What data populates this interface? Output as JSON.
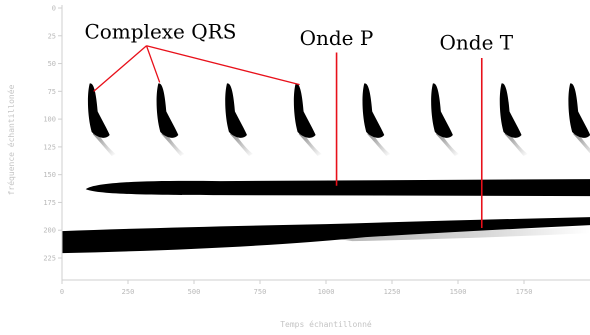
{
  "chart_data": {
    "type": "heatmap",
    "xlabel": "Temps échantillonné",
    "ylabel": "fréquence échantillonée",
    "xlim": [
      0,
      2000
    ],
    "ylim": [
      0,
      240
    ],
    "y_inverted": true,
    "x_ticks": [
      {
        "value": 0,
        "label": "0"
      },
      {
        "value": 250,
        "label": "250"
      },
      {
        "value": 500,
        "label": "500"
      },
      {
        "value": 750,
        "label": "750"
      },
      {
        "value": 1000,
        "label": "1000"
      },
      {
        "value": 1250,
        "label": "1250"
      },
      {
        "value": 1500,
        "label": "1500"
      },
      {
        "value": 1750,
        "label": "1750"
      }
    ],
    "y_ticks": [
      {
        "value": 0,
        "label": "0"
      },
      {
        "value": 25,
        "label": "25"
      },
      {
        "value": 50,
        "label": "50"
      },
      {
        "value": 75,
        "label": "75"
      },
      {
        "value": 100,
        "label": "100"
      },
      {
        "value": 125,
        "label": "125"
      },
      {
        "value": 150,
        "label": "150"
      },
      {
        "value": 175,
        "label": "175"
      },
      {
        "value": 200,
        "label": "200"
      },
      {
        "value": 225,
        "label": "225"
      }
    ],
    "colormap": "grayscale (white = low, black = high)",
    "qrs_complexes_time": [
      120,
      380,
      640,
      900,
      1160,
      1420,
      1680,
      1940
    ],
    "bands": [
      {
        "id": "band-upper",
        "from_time": 90,
        "to_time": 2000,
        "frequency": 163
      },
      {
        "id": "band-lower",
        "from_time": 0,
        "to_time": 2000,
        "frequency": 208
      }
    ],
    "annotations": [
      {
        "id": "qrs",
        "text": "Complexe QRS",
        "text_time": 85,
        "text_freq": 21,
        "targets": [
          {
            "time": 120,
            "freq": 75
          },
          {
            "time": 370,
            "freq": 67
          },
          {
            "time": 900,
            "freq": 69
          }
        ],
        "arrow_from": {
          "time": 320,
          "freq": 34
        },
        "color": "#e8101a"
      },
      {
        "id": "onde-p",
        "text": "Onde P",
        "text_time": 900,
        "text_freq": 27,
        "line_x_time": 1040,
        "line_from_freq": 40,
        "line_to_freq": 160,
        "color": "#e8101a"
      },
      {
        "id": "onde-t",
        "text": "Onde T",
        "text_time": 1430,
        "text_freq": 31,
        "line_x_time": 1590,
        "line_from_freq": 45,
        "line_to_freq": 198,
        "color": "#e8101a"
      }
    ]
  }
}
